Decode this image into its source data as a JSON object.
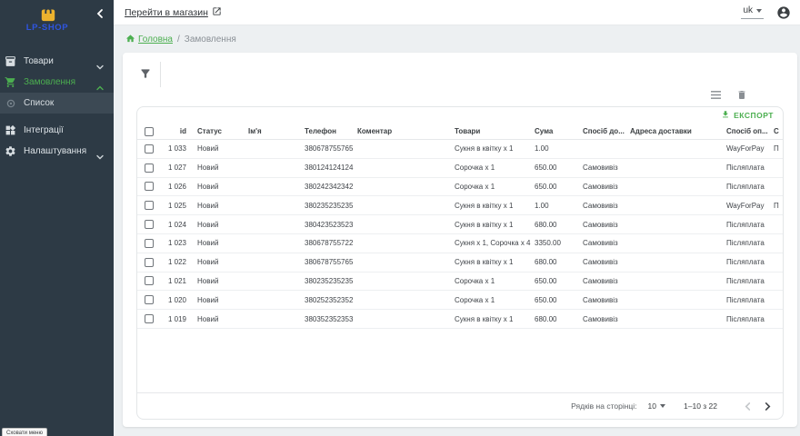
{
  "brand": {
    "name": "LP-SHOP"
  },
  "sidebar": {
    "items": [
      {
        "label": "Товари"
      },
      {
        "label": "Замовлення"
      },
      {
        "label": "Список"
      },
      {
        "label": "Інтеграції"
      },
      {
        "label": "Налаштування"
      }
    ],
    "tooltip": "Сховати меню"
  },
  "topbar": {
    "store_link": "Перейти в магазин",
    "language": "uk"
  },
  "breadcrumb": {
    "home": "Головна",
    "separator": "/",
    "current": "Замовлення"
  },
  "toolbar": {
    "export_label": "ЕКСПОРТ"
  },
  "table": {
    "columns": [
      {
        "key": "id",
        "label": "id",
        "align": "right"
      },
      {
        "key": "status",
        "label": "Статус"
      },
      {
        "key": "name",
        "label": "Ім'я"
      },
      {
        "key": "phone",
        "label": "Телефон"
      },
      {
        "key": "comment",
        "label": "Коментар"
      },
      {
        "key": "goods",
        "label": "Товари"
      },
      {
        "key": "sum",
        "label": "Сума"
      },
      {
        "key": "delivery_method",
        "label": "Спосіб до..."
      },
      {
        "key": "delivery_address",
        "label": "Адреса доставки"
      },
      {
        "key": "payment_method",
        "label": "Спосіб оп..."
      },
      {
        "key": "payment_status",
        "label": "С"
      }
    ],
    "rows": [
      {
        "cells": [
          "1 033",
          "Новий",
          "",
          "380678755765",
          "",
          "Сукня в квітку x 1",
          "1.00",
          "",
          "",
          "WayForPay",
          "П"
        ]
      },
      {
        "cells": [
          "1 027",
          "Новий",
          "",
          "380124124124",
          "",
          "Сорочка x 1",
          "650.00",
          "Самовивіз",
          "",
          "Післяплата",
          ""
        ]
      },
      {
        "cells": [
          "1 026",
          "Новий",
          "",
          "380242342342",
          "",
          "Сорочка x 1",
          "650.00",
          "Самовивіз",
          "",
          "Післяплата",
          ""
        ]
      },
      {
        "cells": [
          "1 025",
          "Новий",
          "",
          "380235235235",
          "",
          "Сукня в квітку x 1",
          "1.00",
          "Самовивіз",
          "",
          "WayForPay",
          "П"
        ]
      },
      {
        "cells": [
          "1 024",
          "Новий",
          "",
          "380423523523",
          "",
          "Сукня в квітку x 1",
          "680.00",
          "Самовивіз",
          "",
          "Післяплата",
          ""
        ]
      },
      {
        "cells": [
          "1 023",
          "Новий",
          "",
          "380678755722",
          "",
          "Сукня x 1, Сорочка x 4",
          "3350.00",
          "Самовивіз",
          "",
          "Післяплата",
          ""
        ]
      },
      {
        "cells": [
          "1 022",
          "Новий",
          "",
          "380678755765",
          "",
          "Сукня в квітку x 1",
          "680.00",
          "Самовивіз",
          "",
          "Післяплата",
          ""
        ]
      },
      {
        "cells": [
          "1 021",
          "Новий",
          "",
          "380235235235",
          "",
          "Сорочка x 1",
          "650.00",
          "Самовивіз",
          "",
          "Післяплата",
          ""
        ]
      },
      {
        "cells": [
          "1 020",
          "Новий",
          "",
          "380252352352",
          "",
          "Сорочка x 1",
          "650.00",
          "Самовивіз",
          "",
          "Післяплата",
          ""
        ]
      },
      {
        "cells": [
          "1 019",
          "Новий",
          "",
          "380352352353",
          "",
          "Сукня в квітку x 1",
          "680.00",
          "Самовивіз",
          "",
          "Післяплата",
          ""
        ]
      }
    ]
  },
  "pagination": {
    "rows_per_page_label": "Рядків на сторінці:",
    "rows_per_page": "10",
    "range": "1–10 з 22"
  },
  "colors": {
    "accent_green": "#4caf50",
    "brand_blue": "#2f55e0",
    "logo_yellow": "#ecb22e",
    "sidebar_bg": "#2d3a45"
  }
}
